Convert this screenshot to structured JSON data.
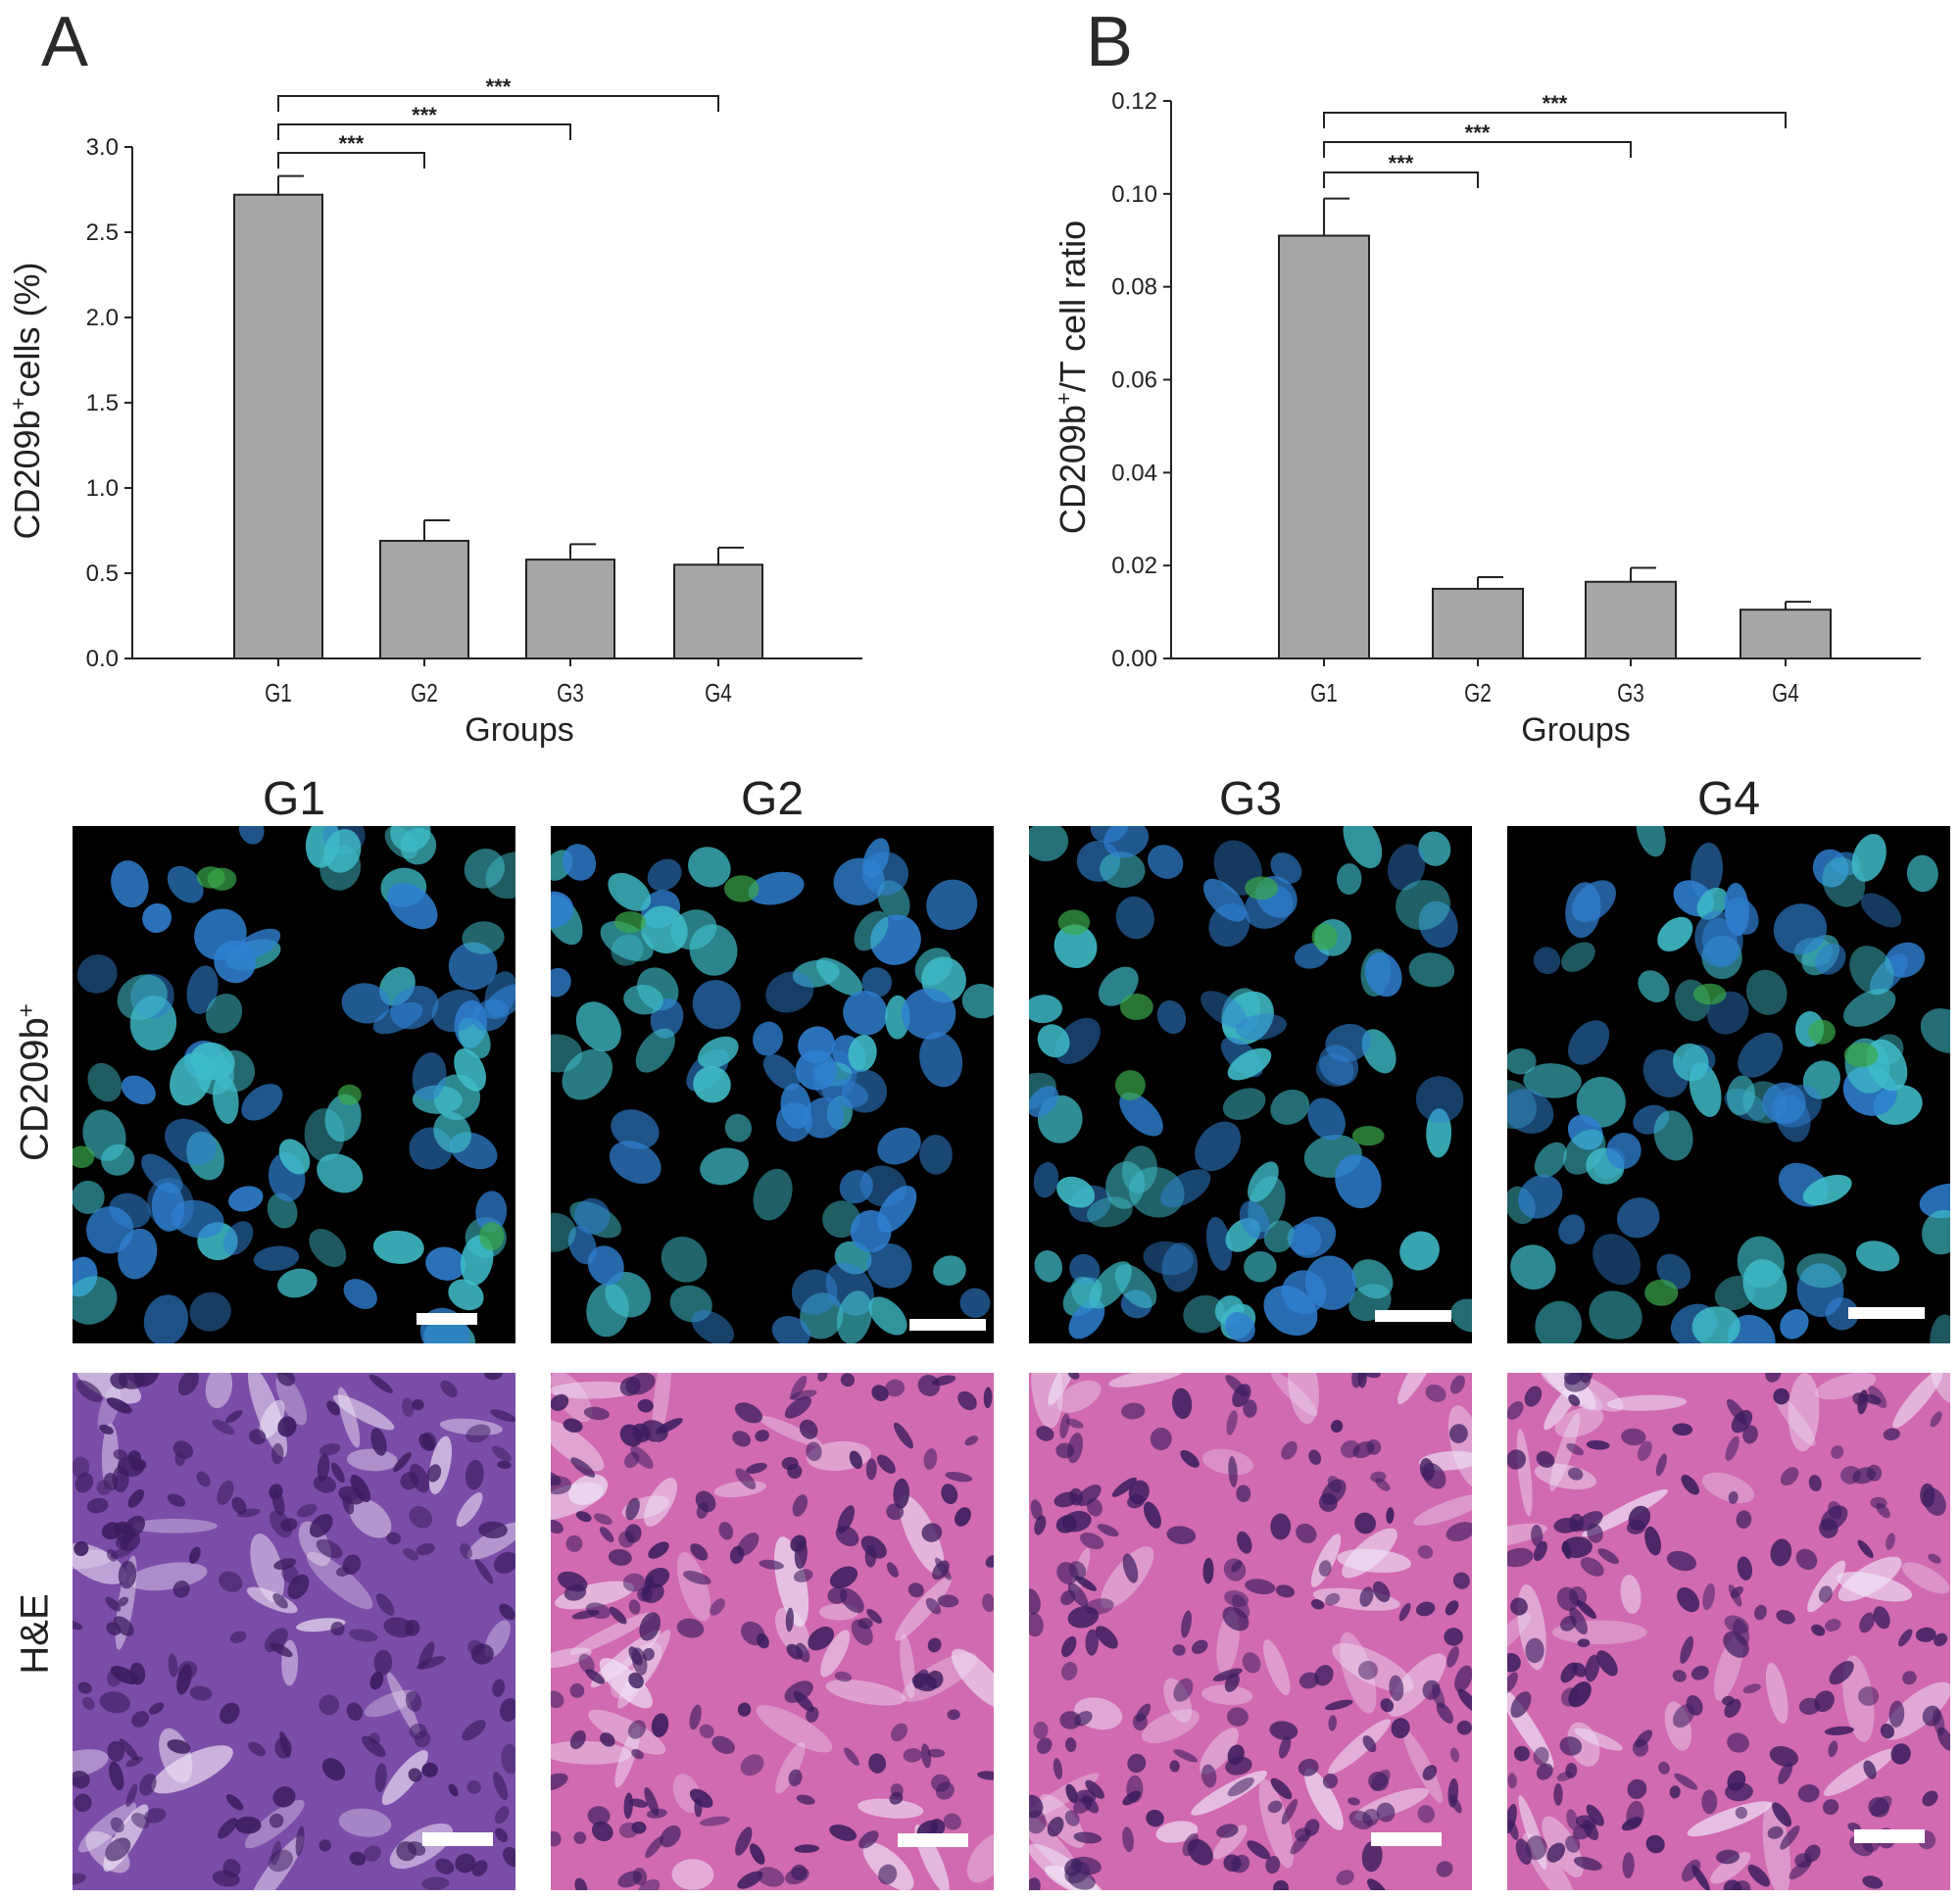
{
  "panels": {
    "a_letter": "A",
    "b_letter": "B"
  },
  "chart_data": [
    {
      "type": "bar",
      "categories": [
        "G1",
        "G2",
        "G3",
        "G4"
      ],
      "values": [
        2.72,
        0.69,
        0.58,
        0.55
      ],
      "errors": [
        0.11,
        0.12,
        0.09,
        0.1
      ],
      "title": "",
      "xlabel": "Groups",
      "ylabel_main": "CD209b",
      "ylabel_sup": "+",
      "ylabel_rest": "cells (%)",
      "ylim": [
        0,
        3.0
      ],
      "yticks": [
        "0.0",
        "0.5",
        "1.0",
        "1.5",
        "2.0",
        "2.5",
        "3.0"
      ],
      "significance": [
        {
          "from": "G1",
          "to": "G2",
          "label": "***"
        },
        {
          "from": "G1",
          "to": "G3",
          "label": "***"
        },
        {
          "from": "G1",
          "to": "G4",
          "label": "***"
        }
      ],
      "bar_color": "#a6a6a6"
    },
    {
      "type": "bar",
      "categories": [
        "G1",
        "G2",
        "G3",
        "G4"
      ],
      "values": [
        0.091,
        0.015,
        0.0165,
        0.0105
      ],
      "errors": [
        0.008,
        0.0025,
        0.003,
        0.0017
      ],
      "title": "",
      "xlabel": "Groups",
      "ylabel_main": "CD209b",
      "ylabel_sup": "+",
      "ylabel_rest": "/T cell ratio",
      "ylim": [
        0,
        0.12
      ],
      "yticks": [
        "0.00",
        "0.02",
        "0.04",
        "0.06",
        "0.08",
        "0.10",
        "0.12"
      ],
      "significance": [
        {
          "from": "G1",
          "to": "G2",
          "label": "***"
        },
        {
          "from": "G1",
          "to": "G3",
          "label": "***"
        },
        {
          "from": "G1",
          "to": "G4",
          "label": "***"
        }
      ],
      "bar_color": "#a6a6a6"
    }
  ],
  "micrographs": {
    "column_titles": [
      "G1",
      "G2",
      "G3",
      "G4"
    ],
    "row_labels": {
      "fluor_main": "CD209b",
      "fluor_sup": "+",
      "he": "H&E"
    },
    "colors": {
      "nucleus_blue": "#2f7fd0",
      "cyan": "#3fbcc8",
      "green": "#3aa84a",
      "he_purple": "#7a4ea8",
      "he_pink": "#d16ab0",
      "he_dark": "#3b1d5e"
    }
  }
}
